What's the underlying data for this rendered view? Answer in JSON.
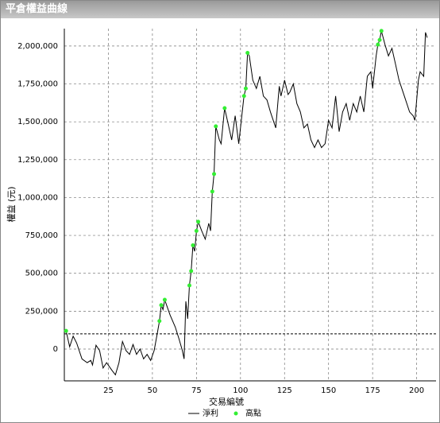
{
  "window": {
    "title": "平倉權益曲線"
  },
  "chart_data": {
    "type": "line",
    "xlabel": "交易編號",
    "ylabel": "權益 (元)",
    "xlim": [
      0,
      211
    ],
    "ylim": [
      -210000,
      2115000
    ],
    "xticks": [
      25,
      50,
      75,
      100,
      125,
      150,
      175,
      200
    ],
    "yticks": [
      0,
      {
        "value": 250000,
        "label": "250,000"
      },
      {
        "value": 500000,
        "label": "500,000"
      },
      {
        "value": 750000,
        "label": "750,000"
      },
      {
        "value": 1000000,
        "label": "1,000,000"
      },
      {
        "value": 1250000,
        "label": "1,250,000"
      },
      {
        "value": 1500000,
        "label": "1,500,000"
      },
      {
        "value": 1750000,
        "label": "1,750,000"
      },
      {
        "value": 2000000,
        "label": "2,000,000"
      }
    ],
    "grid": true,
    "reference_line": 100000,
    "series": [
      {
        "name": "淨利",
        "color": "#000000",
        "mode": "line",
        "x": [
          1,
          3,
          5,
          7,
          10,
          13,
          15,
          16,
          18,
          20,
          22,
          24,
          27,
          29,
          31,
          33,
          35,
          37,
          39,
          41,
          43,
          45,
          47,
          49,
          51,
          53,
          54,
          55,
          56,
          57,
          60,
          63,
          65,
          67,
          68,
          69,
          70,
          71,
          72,
          73,
          74,
          75,
          76,
          78,
          80,
          82,
          83,
          84,
          85,
          86,
          88,
          89,
          91,
          93,
          95,
          97,
          99,
          101,
          102,
          103,
          104,
          105,
          107,
          109,
          111,
          113,
          115,
          117,
          120,
          122,
          123,
          125,
          127,
          128,
          130,
          132,
          134,
          136,
          138,
          140,
          142,
          144,
          146,
          148,
          150,
          152,
          154,
          156,
          158,
          160,
          162,
          164,
          166,
          168,
          170,
          172,
          174,
          175,
          177,
          178,
          179,
          180,
          182,
          184,
          186,
          188,
          190,
          193,
          196,
          198,
          199,
          201,
          202,
          204,
          205,
          206
        ],
        "values": [
          120000,
          15000,
          85000,
          40000,
          -65000,
          -90000,
          -75000,
          -105000,
          25000,
          -10000,
          -125000,
          -90000,
          -140000,
          -170000,
          -90000,
          50000,
          -10000,
          -35000,
          30000,
          -35000,
          0,
          -65000,
          -35000,
          -75000,
          -10000,
          120000,
          185000,
          290000,
          260000,
          325000,
          225000,
          145000,
          70000,
          -10000,
          -65000,
          315000,
          200000,
          420000,
          515000,
          685000,
          645000,
          780000,
          840000,
          780000,
          725000,
          830000,
          780000,
          1040000,
          1155000,
          1470000,
          1380000,
          1355000,
          1590000,
          1485000,
          1380000,
          1540000,
          1355000,
          1565000,
          1670000,
          1720000,
          1955000,
          1935000,
          1775000,
          1720000,
          1800000,
          1670000,
          1645000,
          1565000,
          1460000,
          1735000,
          1670000,
          1775000,
          1680000,
          1695000,
          1750000,
          1620000,
          1565000,
          1460000,
          1485000,
          1380000,
          1330000,
          1380000,
          1330000,
          1355000,
          1510000,
          1460000,
          1670000,
          1435000,
          1565000,
          1620000,
          1510000,
          1620000,
          1565000,
          1670000,
          1565000,
          1800000,
          1830000,
          1720000,
          1935000,
          2010000,
          2040000,
          2100000,
          2010000,
          1935000,
          1985000,
          1880000,
          1775000,
          1670000,
          1565000,
          1540000,
          1510000,
          1775000,
          1830000,
          1800000,
          2090000,
          2055000
        ]
      },
      {
        "name": "高點",
        "color": "#33ee33",
        "mode": "markers",
        "x": [
          1,
          54,
          55,
          57,
          71,
          72,
          73,
          75,
          76,
          84,
          85,
          86,
          91,
          102,
          103,
          104,
          178,
          179,
          180
        ],
        "values": [
          120000,
          185000,
          290000,
          325000,
          420000,
          515000,
          685000,
          780000,
          840000,
          1040000,
          1155000,
          1470000,
          1590000,
          1670000,
          1720000,
          1955000,
          2010000,
          2040000,
          2100000
        ]
      }
    ]
  }
}
